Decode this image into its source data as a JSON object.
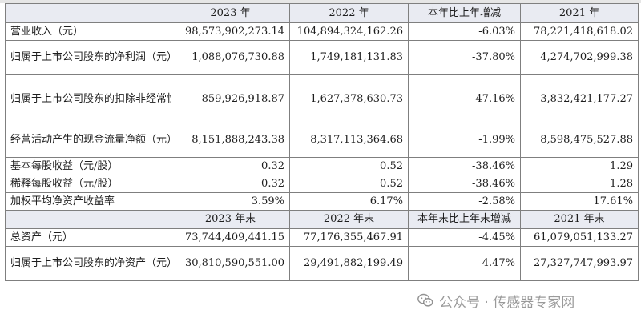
{
  "table": {
    "header_top": [
      "",
      "2023 年",
      "2022 年",
      "本年比上年增减",
      "2021 年"
    ],
    "rows_top": [
      {
        "label": "营业收入（元）",
        "v2023": "98,573,902,273.14",
        "v2022": "104,894,324,162.26",
        "change": "-6.03%",
        "v2021": "78,221,418,618.02"
      },
      {
        "label": "归属于上市公司股东的净利润（元）",
        "v2023": "1,088,076,730.88",
        "v2022": "1,749,181,131.83",
        "change": "-37.80%",
        "v2021": "4,274,702,999.38"
      },
      {
        "label": "归属于上市公司股东的扣除非经常性损益的净利润（元）",
        "v2023": "859,926,918.87",
        "v2022": "1,627,378,630.73",
        "change": "-47.16%",
        "v2021": "3,832,421,177.27"
      },
      {
        "label": "经营活动产生的现金流量净额（元）",
        "v2023": "8,151,888,243.38",
        "v2022": "8,317,113,364.68",
        "change": "-1.99%",
        "v2021": "8,598,475,527.88"
      },
      {
        "label": "基本每股收益（元/股）",
        "v2023": "0.32",
        "v2022": "0.52",
        "change": "-38.46%",
        "v2021": "1.29"
      },
      {
        "label": "稀释每股收益（元/股）",
        "v2023": "0.32",
        "v2022": "0.52",
        "change": "-38.46%",
        "v2021": "1.28"
      },
      {
        "label": "加权平均净资产收益率",
        "v2023": "3.59%",
        "v2022": "6.17%",
        "change": "-2.58%",
        "v2021": "17.61%"
      }
    ],
    "header_bottom": [
      "",
      "2023 年末",
      "2022 年末",
      "本年末比上年末增减",
      "2021 年末"
    ],
    "rows_bottom": [
      {
        "label": "总资产（元）",
        "v2023": "73,744,409,441.15",
        "v2022": "77,176,355,467.91",
        "change": "-4.45%",
        "v2021": "61,079,051,133.27"
      },
      {
        "label": "归属于上市公司股东的净资产（元）",
        "v2023": "30,810,590,551.00",
        "v2022": "29,491,882,199.49",
        "change": "4.47%",
        "v2021": "27,327,747,993.97"
      }
    ]
  },
  "watermark": {
    "text": "公众号 · 传感器专家网",
    "icon": "wechat-icon"
  }
}
